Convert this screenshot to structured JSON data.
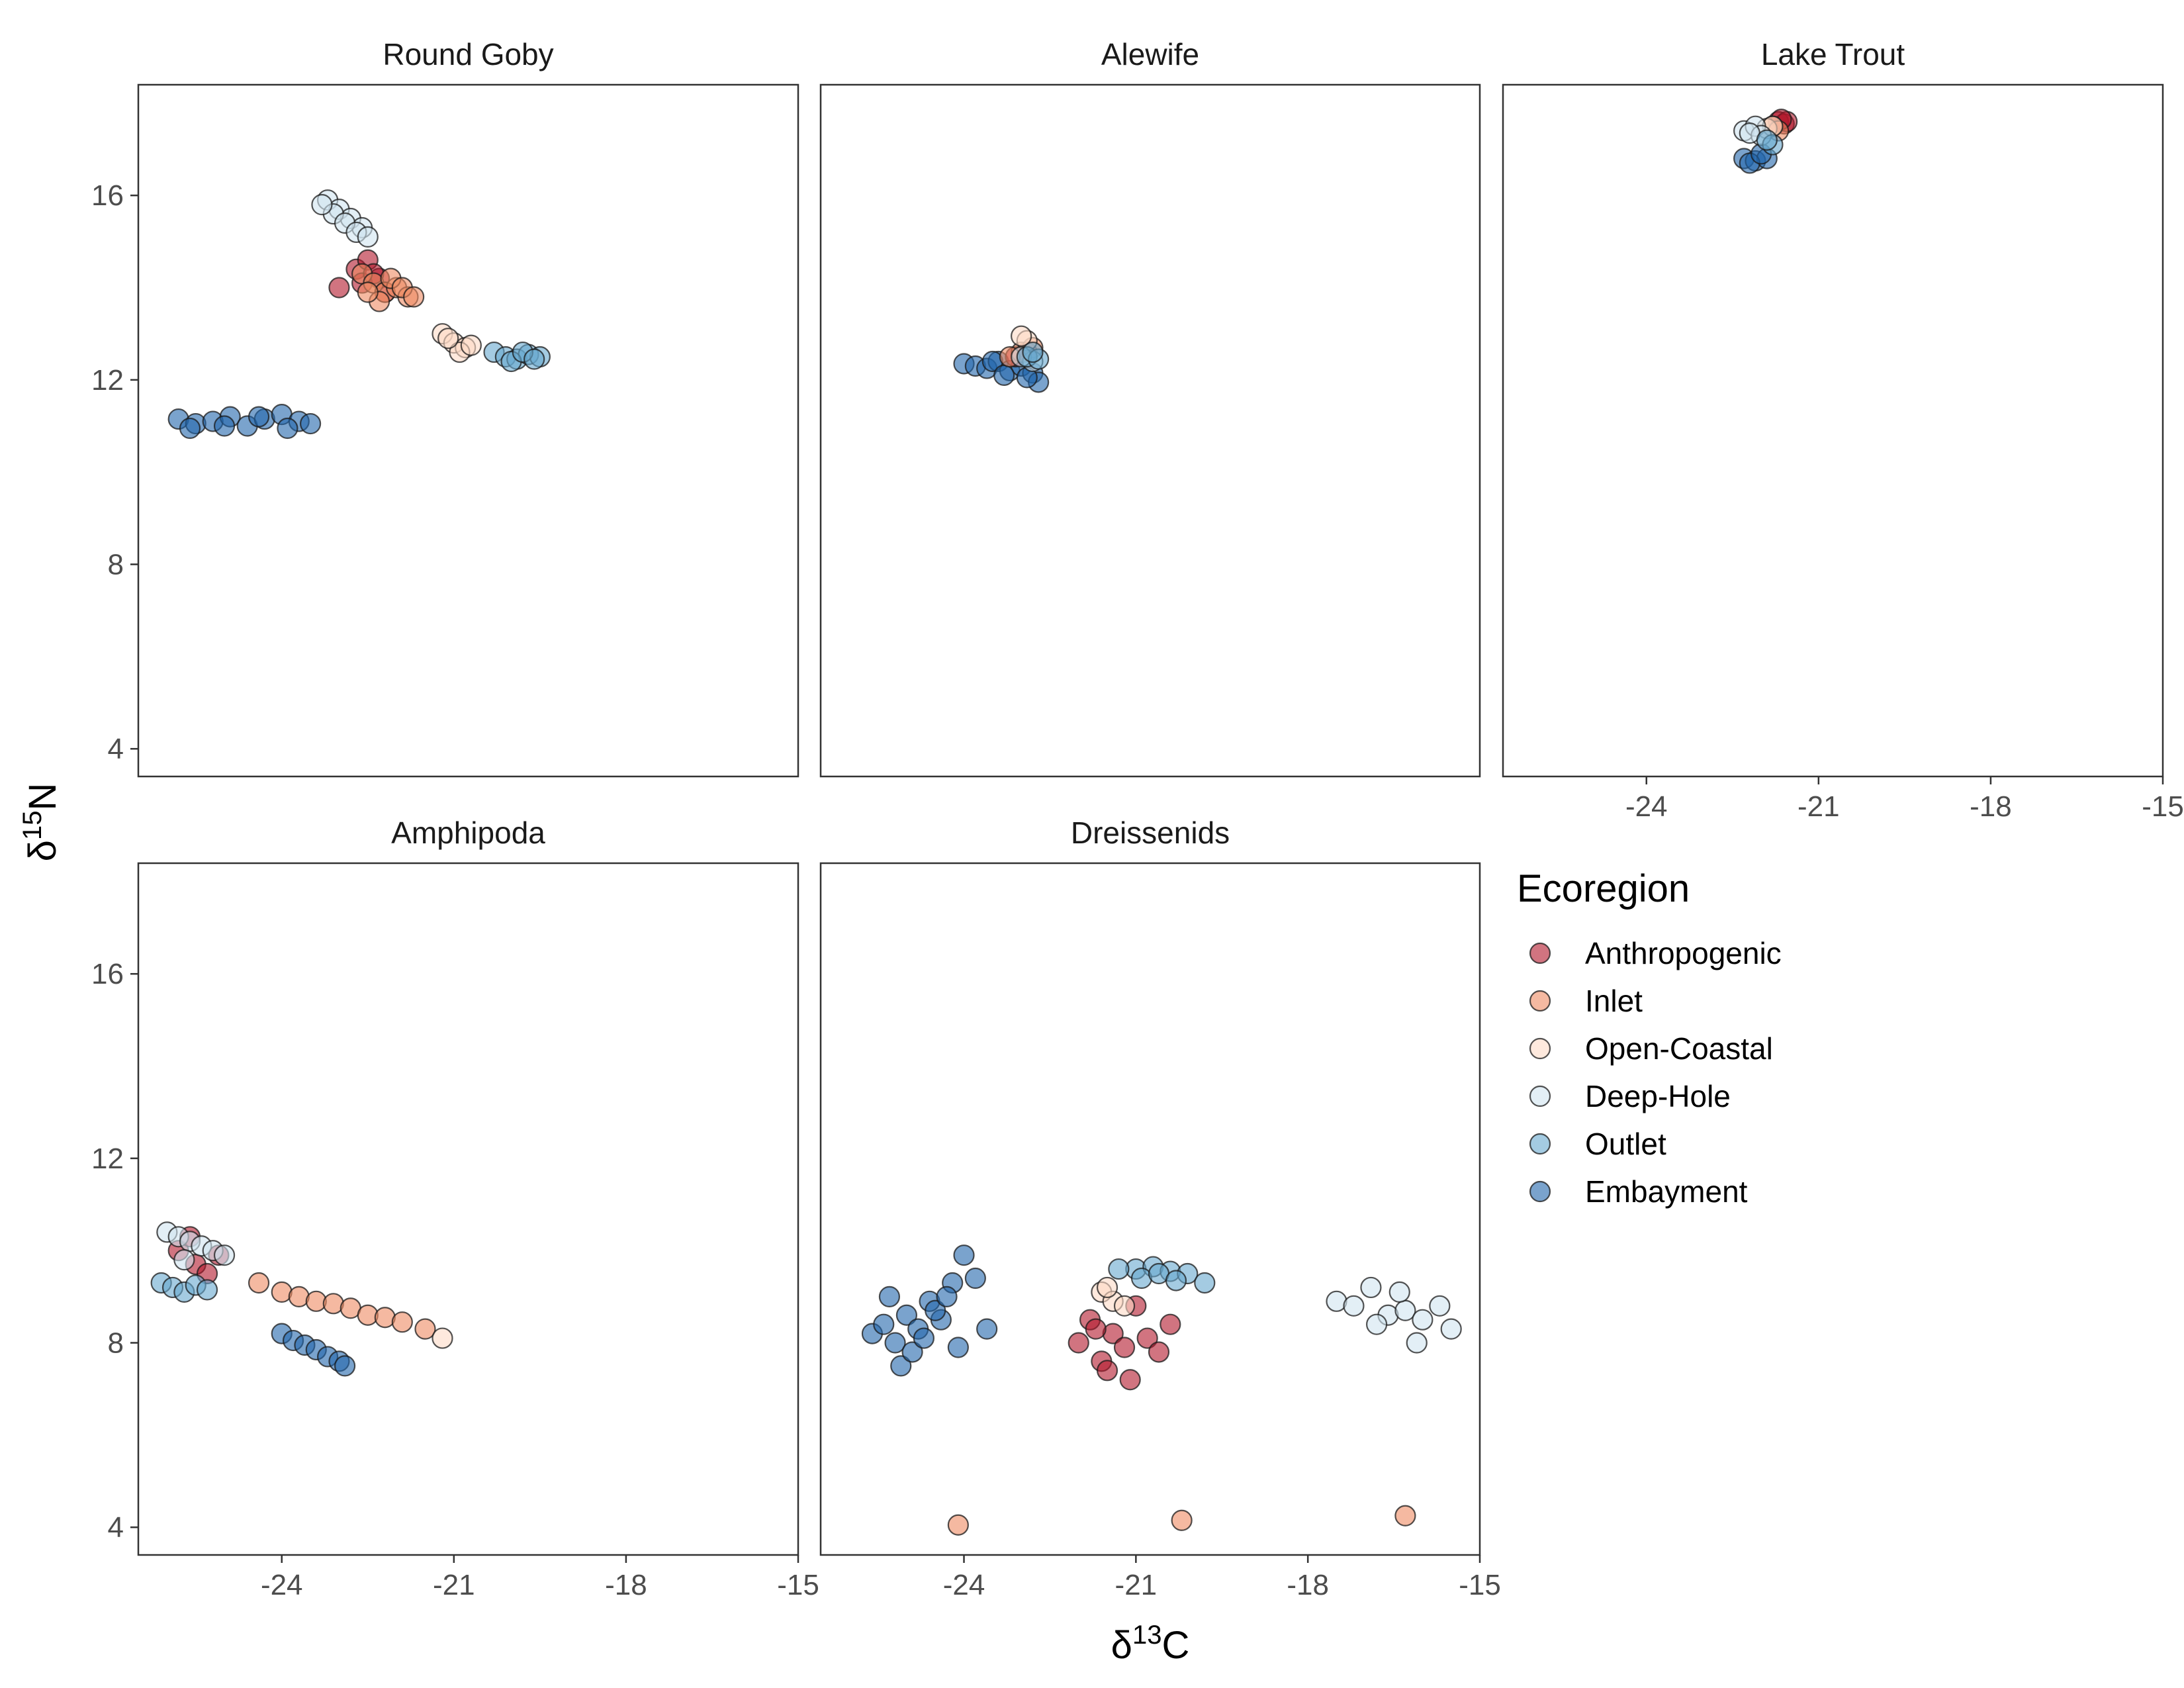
{
  "chart_data": {
    "type": "scatter",
    "xlabel": "δ13C",
    "ylabel": "δ15N",
    "xlim": [
      -26.5,
      -15
    ],
    "ylim": [
      3.4,
      18.4
    ],
    "x_ticks": [
      -24,
      -21,
      -18,
      -15
    ],
    "y_ticks": [
      4,
      8,
      12,
      16
    ],
    "grid": false,
    "legend": {
      "title": "Ecoregion",
      "position": "right",
      "entries": [
        "Anthropogenic",
        "Inlet",
        "Open-Coastal",
        "Deep-Hole",
        "Outlet",
        "Embayment"
      ]
    },
    "colors": {
      "Anthropogenic": "#b2182b",
      "Inlet": "#ef8a62",
      "Open-Coastal": "#fddbc7",
      "Deep-Hole": "#d1e5f0",
      "Outlet": "#67a9cf",
      "Embayment": "#2166ac"
    },
    "panels": [
      {
        "title": "Round Goby",
        "series": [
          {
            "name": "Embayment",
            "x": [
              -25.8,
              -25.5,
              -25.2,
              -24.9,
              -24.6,
              -24.3,
              -24.0,
              -23.7,
              -23.5,
              -25.6,
              -25.0,
              -24.4,
              -23.9
            ],
            "y": [
              11.15,
              11.05,
              11.1,
              11.2,
              11.0,
              11.15,
              11.25,
              11.1,
              11.05,
              10.95,
              11.0,
              11.2,
              10.95
            ]
          },
          {
            "name": "Deep-Hole",
            "x": [
              -23.2,
              -23.0,
              -22.8,
              -22.6,
              -23.1,
              -22.9,
              -22.7,
              -23.3,
              -22.5
            ],
            "y": [
              15.9,
              15.7,
              15.5,
              15.3,
              15.6,
              15.4,
              15.2,
              15.8,
              15.1
            ]
          },
          {
            "name": "Anthropogenic",
            "x": [
              -23.0,
              -22.7,
              -22.5,
              -22.3,
              -22.6,
              -22.4,
              -22.2
            ],
            "y": [
              14.0,
              14.4,
              14.6,
              14.2,
              14.1,
              14.3,
              13.9
            ]
          },
          {
            "name": "Inlet",
            "x": [
              -22.6,
              -22.4,
              -22.2,
              -22.0,
              -21.8,
              -22.3,
              -22.1,
              -21.9,
              -22.5,
              -21.7
            ],
            "y": [
              14.3,
              14.1,
              13.9,
              14.0,
              13.8,
              13.7,
              14.2,
              14.0,
              13.9,
              13.8
            ]
          },
          {
            "name": "Open-Coastal",
            "x": [
              -21.2,
              -21.0,
              -20.8,
              -20.9,
              -21.1,
              -20.7
            ],
            "y": [
              13.0,
              12.8,
              12.7,
              12.6,
              12.9,
              12.75
            ]
          },
          {
            "name": "Outlet",
            "x": [
              -20.3,
              -20.1,
              -19.9,
              -19.7,
              -19.5,
              -20.0,
              -19.8,
              -19.6
            ],
            "y": [
              12.6,
              12.5,
              12.45,
              12.55,
              12.5,
              12.4,
              12.6,
              12.45
            ]
          }
        ]
      },
      {
        "title": "Alewife",
        "series": [
          {
            "name": "Embayment",
            "x": [
              -24.0,
              -23.8,
              -23.6,
              -23.4,
              -23.2,
              -23.0,
              -22.8,
              -22.7,
              -23.5,
              -23.3,
              -22.9
            ],
            "y": [
              12.35,
              12.3,
              12.25,
              12.4,
              12.2,
              12.3,
              12.15,
              11.95,
              12.4,
              12.1,
              12.05
            ]
          },
          {
            "name": "Outlet",
            "x": [
              -22.9,
              -22.7,
              -22.8
            ],
            "y": [
              12.5,
              12.45,
              12.6
            ]
          },
          {
            "name": "Anthropogenic",
            "x": [
              -23.1,
              -22.9
            ],
            "y": [
              12.5,
              12.6
            ]
          },
          {
            "name": "Inlet",
            "x": [
              -23.0,
              -22.8,
              -23.2
            ],
            "y": [
              12.6,
              12.7,
              12.5
            ]
          },
          {
            "name": "Open-Coastal",
            "x": [
              -22.9,
              -23.0
            ],
            "y": [
              12.85,
              12.95
            ]
          },
          {
            "name": "Deep-Hole",
            "x": [
              -22.8,
              -23.0
            ],
            "y": [
              12.4,
              12.5
            ]
          }
        ]
      },
      {
        "title": "Lake Trout",
        "series": [
          {
            "name": "Embayment",
            "x": [
              -22.3,
              -22.1,
              -21.9,
              -22.2,
              -22.0
            ],
            "y": [
              16.8,
              16.75,
              16.8,
              16.7,
              16.9
            ]
          },
          {
            "name": "Outlet",
            "x": [
              -21.8,
              -21.9
            ],
            "y": [
              17.1,
              17.2
            ]
          },
          {
            "name": "Deep-Hole",
            "x": [
              -22.3,
              -22.1,
              -22.0,
              -22.2
            ],
            "y": [
              17.4,
              17.5,
              17.3,
              17.35
            ]
          },
          {
            "name": "Open-Coastal",
            "x": [
              -21.9,
              -21.8
            ],
            "y": [
              17.45,
              17.5
            ]
          },
          {
            "name": "Inlet",
            "x": [
              -21.8,
              -21.7
            ],
            "y": [
              17.5,
              17.4
            ]
          },
          {
            "name": "Anthropogenic",
            "x": [
              -21.7,
              -21.6,
              -21.55,
              -21.65
            ],
            "y": [
              17.6,
              17.55,
              17.6,
              17.65
            ]
          }
        ]
      },
      {
        "title": "Amphipoda",
        "series": [
          {
            "name": "Outlet",
            "x": [
              -26.1,
              -25.9,
              -25.7,
              -25.5,
              -25.3
            ],
            "y": [
              9.3,
              9.2,
              9.1,
              9.25,
              9.15
            ]
          },
          {
            "name": "Anthropogenic",
            "x": [
              -25.8,
              -25.5,
              -25.3,
              -25.1,
              -25.6
            ],
            "y": [
              10.0,
              9.7,
              9.5,
              9.9,
              10.3
            ]
          },
          {
            "name": "Deep-Hole",
            "x": [
              -26.0,
              -25.8,
              -25.6,
              -25.4,
              -25.2,
              -25.0,
              -25.7
            ],
            "y": [
              10.4,
              10.3,
              10.2,
              10.1,
              10.0,
              9.9,
              9.8
            ]
          },
          {
            "name": "Inlet",
            "x": [
              -24.4,
              -24.0,
              -23.7,
              -23.4,
              -23.1,
              -22.8,
              -22.5,
              -22.2,
              -21.9,
              -21.5
            ],
            "y": [
              9.3,
              9.1,
              9.0,
              8.9,
              8.85,
              8.75,
              8.6,
              8.55,
              8.45,
              8.3
            ]
          },
          {
            "name": "Open-Coastal",
            "x": [
              -21.2
            ],
            "y": [
              8.1
            ]
          },
          {
            "name": "Embayment",
            "x": [
              -24.0,
              -23.8,
              -23.6,
              -23.4,
              -23.2,
              -23.0,
              -22.9
            ],
            "y": [
              8.2,
              8.05,
              7.95,
              7.85,
              7.7,
              7.6,
              7.5
            ]
          }
        ]
      },
      {
        "title": "Dreissenids",
        "series": [
          {
            "name": "Embayment",
            "x": [
              -25.6,
              -25.4,
              -25.2,
              -25.0,
              -24.8,
              -24.6,
              -24.4,
              -24.2,
              -24.0,
              -23.8,
              -23.6,
              -25.1,
              -24.9,
              -24.7,
              -24.5,
              -24.3,
              -24.1,
              -25.3
            ],
            "y": [
              8.2,
              8.4,
              8.0,
              8.6,
              8.3,
              8.9,
              8.5,
              9.3,
              9.9,
              9.4,
              8.3,
              7.5,
              7.8,
              8.1,
              8.7,
              9.0,
              7.9,
              9.0
            ]
          },
          {
            "name": "Outlet",
            "x": [
              -21.0,
              -20.7,
              -20.4,
              -20.1,
              -19.8,
              -20.9,
              -20.6,
              -20.3,
              -21.3
            ],
            "y": [
              9.6,
              9.65,
              9.55,
              9.5,
              9.3,
              9.4,
              9.5,
              9.35,
              9.6
            ]
          },
          {
            "name": "Open-Coastal",
            "x": [
              -21.6,
              -21.4,
              -21.2,
              -21.5
            ],
            "y": [
              9.1,
              8.9,
              8.8,
              9.2
            ]
          },
          {
            "name": "Anthropogenic",
            "x": [
              -22.0,
              -21.8,
              -21.6,
              -21.4,
              -21.2,
              -21.0,
              -20.8,
              -20.6,
              -20.4,
              -21.5,
              -21.1,
              -21.7
            ],
            "y": [
              8.0,
              8.5,
              7.6,
              8.2,
              7.9,
              8.8,
              8.1,
              7.8,
              8.4,
              7.4,
              7.2,
              8.3
            ]
          },
          {
            "name": "Deep-Hole",
            "x": [
              -17.5,
              -17.2,
              -16.9,
              -16.6,
              -16.3,
              -16.0,
              -15.7,
              -15.5,
              -16.8,
              -16.4,
              -16.1
            ],
            "y": [
              8.9,
              8.8,
              9.2,
              8.6,
              8.7,
              8.5,
              8.8,
              8.3,
              8.4,
              9.1,
              8.0
            ]
          },
          {
            "name": "Inlet",
            "x": [
              -24.1,
              -20.2,
              -16.3
            ],
            "y": [
              4.05,
              4.15,
              4.25
            ]
          }
        ]
      }
    ]
  }
}
